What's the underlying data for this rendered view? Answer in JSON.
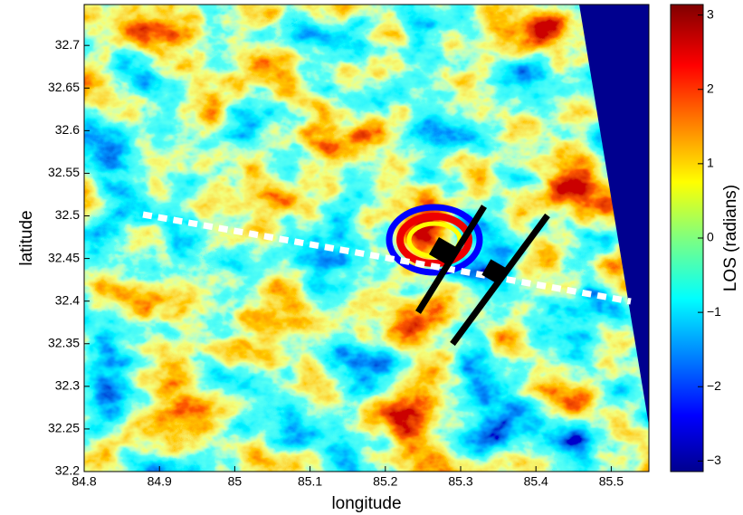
{
  "chart_data": {
    "type": "image",
    "xlabel": "longitude",
    "ylabel": "latitude",
    "xlim": [
      84.8,
      85.55
    ],
    "ylim": [
      32.2,
      32.748
    ],
    "xticks": [
      84.8,
      84.9,
      {
        "value": 85,
        "label": "85"
      },
      85.1,
      85.2,
      85.3,
      85.4,
      85.5
    ],
    "yticks": [
      32.2,
      32.25,
      32.3,
      32.35,
      32.4,
      32.45,
      32.5,
      32.55,
      32.6,
      32.65,
      32.7
    ],
    "colorbar": {
      "label": "LOS (radians)",
      "colormap": "jet",
      "clim": [
        -3.14159,
        3.14159
      ],
      "ticks": [
        {
          "value": -3,
          "label": "−3"
        },
        {
          "value": -2,
          "label": "−2"
        },
        {
          "value": -1,
          "label": "−1"
        },
        0,
        1,
        2,
        3
      ]
    }
  }
}
